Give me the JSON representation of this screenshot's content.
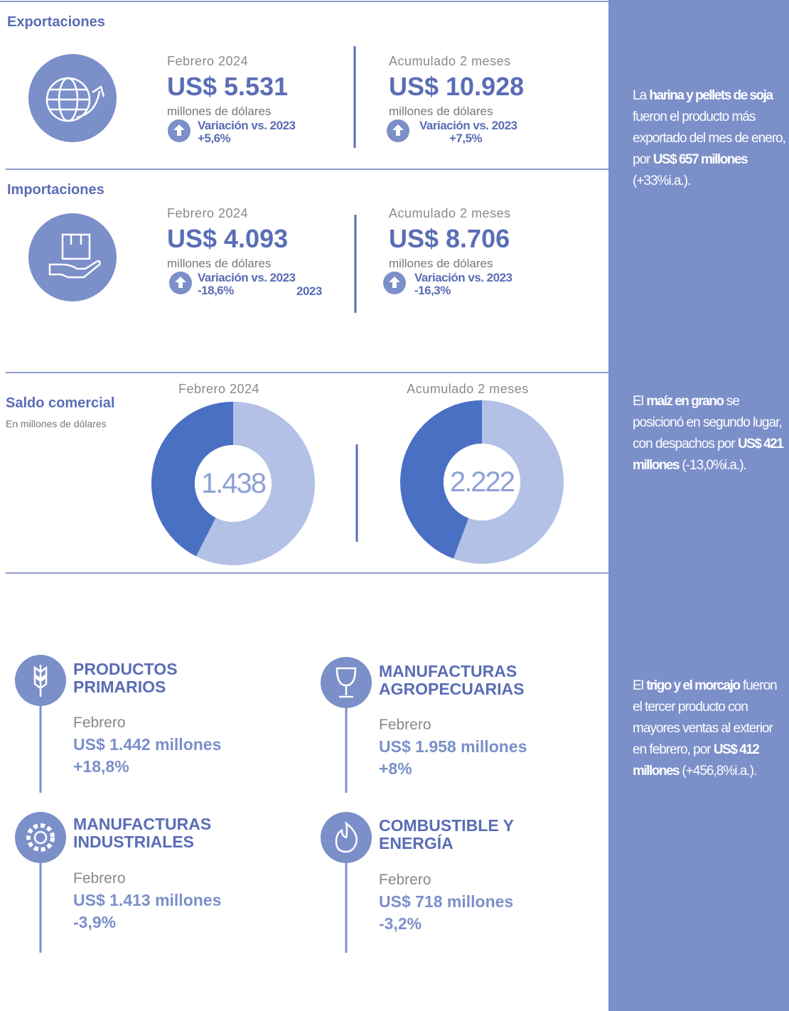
{
  "exports": {
    "title": "Exportaciones",
    "month": {
      "period": "Febrero 2024",
      "amount": "US$ 5.531",
      "unit": "millones de dólares",
      "variation_label": "Variación vs. 2023",
      "variation": "+5,6%"
    },
    "accum": {
      "period": "Acumulado 2 meses",
      "amount": "US$ 10.928",
      "unit": "millones de dólares",
      "variation_label": "Variación vs. 2023",
      "variation": "+7,5%"
    }
  },
  "imports": {
    "title": "Importaciones",
    "month": {
      "period": "Febrero 2024",
      "amount": "US$ 4.093",
      "unit": "millones de dólares",
      "variation_label": "Variación vs. 2023",
      "variation": "-18,6%",
      "overlay": "2023"
    },
    "accum": {
      "period": "Acumulado 2 meses",
      "amount": "US$ 8.706",
      "unit": "millones de dólares",
      "variation_label": "Variación vs. 2023",
      "variation": "-16,3%"
    }
  },
  "balance": {
    "title": "Saldo comercial",
    "subtitle": "En millones de dólares",
    "charts": [
      {
        "period": "Febrero 2024",
        "center": "1.438",
        "values": [
          5531,
          4093
        ]
      },
      {
        "period": "Acumulado 2 meses",
        "center": "2.222",
        "values": [
          10928,
          8706
        ]
      }
    ]
  },
  "sectors": [
    {
      "name": [
        "PRODUCTOS",
        "PRIMARIOS"
      ],
      "period": "Febrero",
      "amount": "US$ 1.442 millones",
      "change": "+18,8%"
    },
    {
      "name": [
        "MANUFACTURAS",
        "AGROPECUARIAS"
      ],
      "period": "Febrero",
      "amount": "US$ 1.958 millones",
      "change": "+8%"
    },
    {
      "name": [
        "MANUFACTURAS",
        "INDUSTRIALES"
      ],
      "period": "Febrero",
      "amount": "US$ 1.413 millones",
      "change": "-3,9%"
    },
    {
      "name": [
        "COMBUSTIBLE Y",
        "ENERGÍA"
      ],
      "period": "Febrero",
      "amount": "US$ 718 millones",
      "change": "-3,2%"
    }
  ],
  "notes": [
    [
      {
        "text": "La "
      },
      {
        "text": "harina y pellets de soja",
        "bold": true
      },
      {
        "text": " fueron el producto más exportado del mes de enero, por "
      },
      {
        "text": "US$ 657 millones",
        "bold": true
      },
      {
        "text": " (+33%i.a.)."
      }
    ],
    [
      {
        "text": "El "
      },
      {
        "text": "maíz en grano",
        "bold": true
      },
      {
        "text": " se posicionó en segundo lugar, con despachos por "
      },
      {
        "text": "US$ 421 millones",
        "bold": true
      },
      {
        "text": " (-13,0%i.a.)."
      }
    ],
    [
      {
        "text": "El "
      },
      {
        "text": "trigo y el morcajo",
        "bold": true
      },
      {
        "text": " fueron el tercer producto con mayores ventas al exterior en febrero, por "
      },
      {
        "text": "US$ 412 millones",
        "bold": true
      },
      {
        "text": " (+456,8%i.a.)."
      }
    ]
  ]
}
